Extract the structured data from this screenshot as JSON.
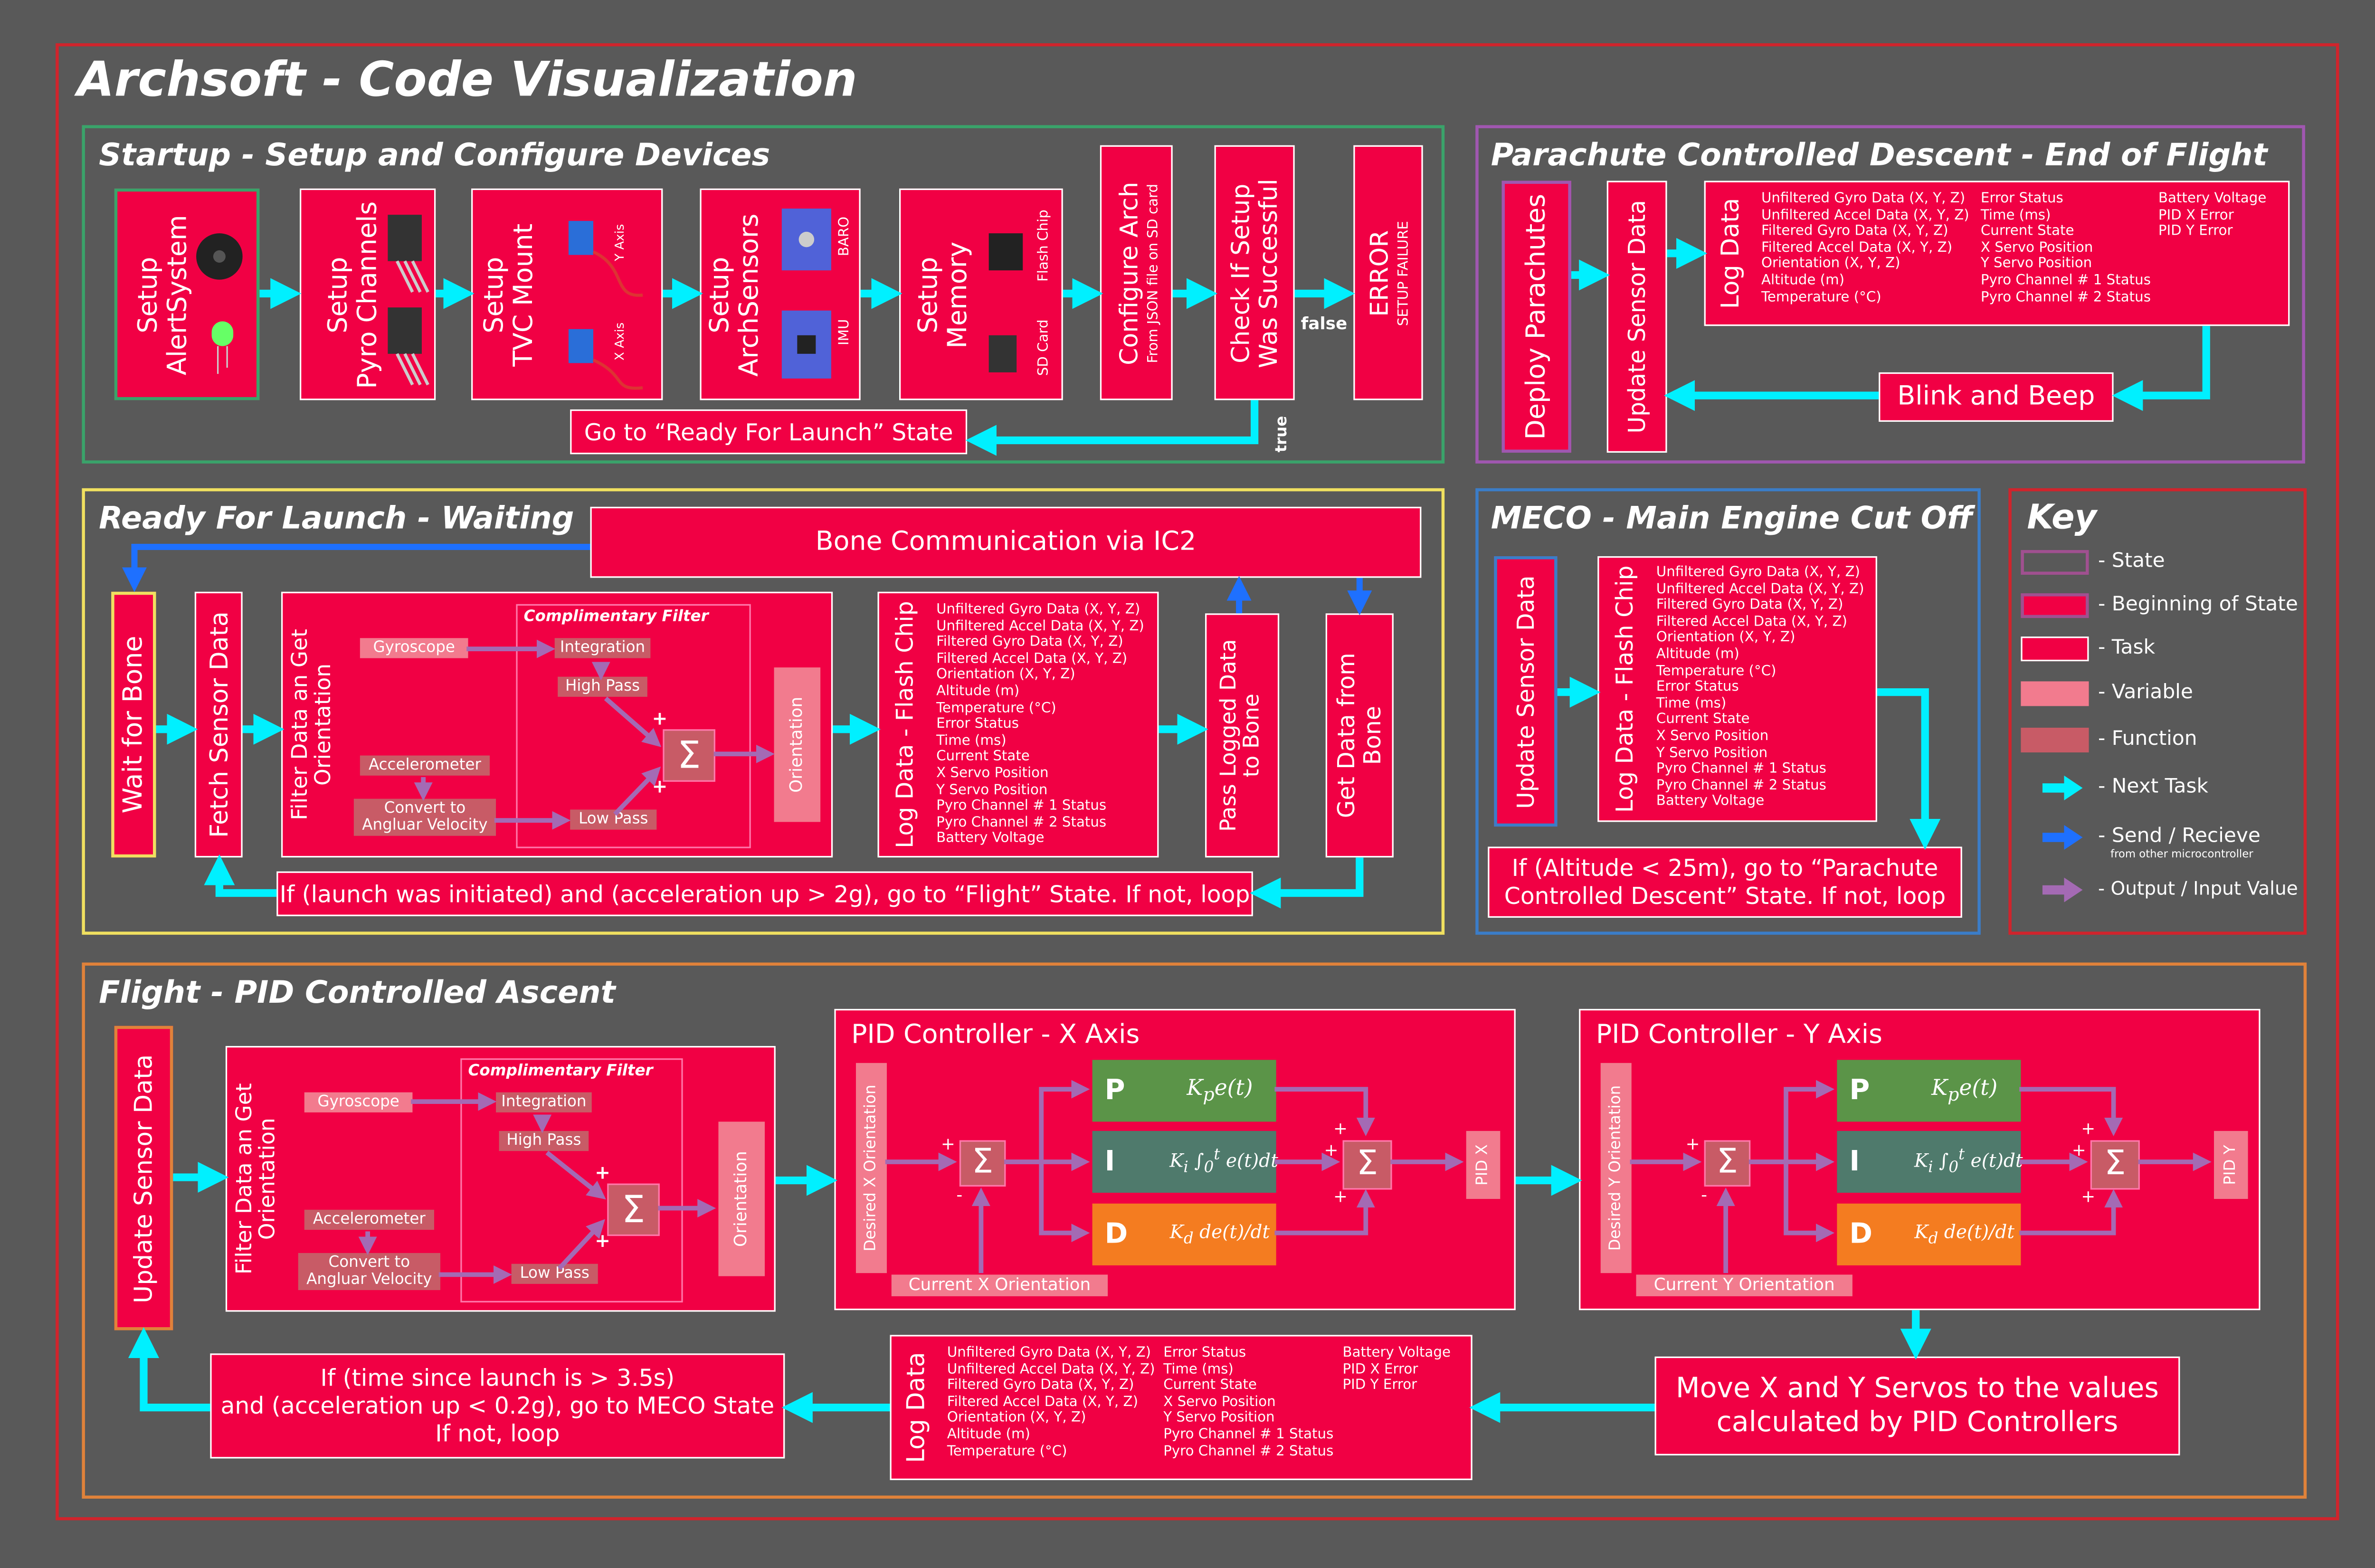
{
  "title": "Archsoft - Code Visualization",
  "startup": {
    "title": "Startup - Setup and Configure Devices",
    "alert": "Setup\nAlertSystem",
    "pyro": "Setup\nPyro Channels",
    "tvc": "Setup\nTVC Mount",
    "tvc_y": "Y Axis",
    "tvc_x": "X Axis",
    "sensors": "Setup\nArchSensors",
    "baro": "BARO",
    "imu": "IMU",
    "memory": "Setup\nMemory",
    "flash_chip": "Flash Chip",
    "sd_card": "SD Card",
    "configure": "Configure Arch",
    "configure_sub": "From JSON file on SD card",
    "check": "Check If Setup\nWas Successful",
    "false_label": "false",
    "true_label": "true",
    "error": "ERROR",
    "error_sub": "SETUP FAILURE",
    "go_ready": "Go to “Ready For Launch” State"
  },
  "parachute": {
    "title": "Parachute Controlled Descent - End of Flight",
    "deploy": "Deploy Parachutes",
    "update": "Update Sensor Data",
    "log": "Log Data",
    "log_col1": [
      "Unfiltered Gyro Data (X, Y, Z)",
      "Unfiltered Accel Data (X, Y, Z)",
      "Filtered Gyro Data (X, Y, Z)",
      "Filtered Accel Data (X, Y, Z)",
      "Orientation (X, Y, Z)",
      "Altitude (m)",
      "Temperature (°C)"
    ],
    "log_col2": [
      "Error Status",
      "Time (ms)",
      "Current State",
      "X Servo Position",
      "Y Servo Position",
      "Pyro Channel # 1 Status",
      "Pyro Channel # 2 Status"
    ],
    "log_col3": [
      "Battery Voltage",
      "PID X Error",
      "PID Y Error"
    ],
    "blink": "Blink and Beep"
  },
  "ready": {
    "title": "Ready For Launch - Waiting",
    "bone_comm": "Bone Communication via IC2",
    "wait": "Wait for Bone",
    "fetch": "Fetch Sensor Data",
    "filter": "Filter Data an Get\nOrientation",
    "cf": "Complimentary Filter",
    "gyro": "Gyroscope",
    "accel": "Accelerometer",
    "convert": "Convert to\nAngluar Velocity",
    "integration": "Integration",
    "high_pass": "High Pass",
    "low_pass": "Low Pass",
    "sigma": "Σ",
    "orientation": "Orientation",
    "log": "Log Data  -  Flash Chip",
    "log_list": [
      "Unfiltered Gyro Data (X, Y, Z)",
      "Unfiltered Accel Data (X, Y, Z)",
      "Filtered Gyro Data (X, Y, Z)",
      "Filtered Accel Data (X, Y, Z)",
      "Orientation (X, Y, Z)",
      "Altitude (m)",
      "Temperature (°C)",
      "Error Status",
      "Time (ms)",
      "Current State",
      "X Servo Position",
      "Y Servo Position",
      "Pyro Channel # 1 Status",
      "Pyro Channel # 2 Status",
      "Battery Voltage"
    ],
    "pass": "Pass Logged Data\nto Bone",
    "get": "Get Data from\nBone",
    "loop": "If (launch was initiated) and (acceleration up > 2g), go to “Flight” State. If not, loop"
  },
  "meco": {
    "title": "MECO - Main Engine Cut Off",
    "update": "Update Sensor Data",
    "log": "Log Data  -  Flash Chip",
    "log_list": [
      "Unfiltered Gyro Data (X, Y, Z)",
      "Unfiltered Accel Data (X, Y, Z)",
      "Filtered Gyro Data (X, Y, Z)",
      "Filtered Accel Data (X, Y, Z)",
      "Orientation (X, Y, Z)",
      "Altitude (m)",
      "Temperature (°C)",
      "Error Status",
      "Time (ms)",
      "Current State",
      "X Servo Position",
      "Y Servo Position",
      "Pyro Channel # 1 Status",
      "Pyro Channel # 2 Status",
      "Battery Voltage"
    ],
    "cond": "If (Altitude < 25m), go to “Parachute\nControlled Descent” State. If not, loop"
  },
  "key": {
    "title": "Key",
    "items": [
      "- State",
      "- Beginning of State",
      "- Task",
      "- Variable",
      "- Function",
      "- Next Task",
      "- Send / Recieve",
      "- Output / Input Value"
    ],
    "send_sub": "from other microcontroller"
  },
  "flight": {
    "title": "Flight - PID Controlled Ascent",
    "update": "Update Sensor Data",
    "filter": "Filter Data an Get\nOrientation",
    "cf": "Complimentary Filter",
    "gyro": "Gyroscope",
    "accel": "Accelerometer",
    "convert": "Convert to\nAngluar Velocity",
    "integration": "Integration",
    "high_pass": "High Pass",
    "low_pass": "Low Pass",
    "orientation": "Orientation",
    "pid_x": {
      "title": "PID Controller - X Axis",
      "desired": "Desired X Orientation",
      "current": "Current X Orientation",
      "out": "PID X"
    },
    "pid_y": {
      "title": "PID Controller - Y Axis",
      "desired": "Desired Y Orientation",
      "current": "Current Y Orientation",
      "out": "PID Y"
    },
    "p": "P",
    "i": "I",
    "d": "D",
    "plus": "+",
    "minus": "-",
    "move": "Move X and Y Servos to the values\ncalculated by PID Controllers",
    "log": "Log Data",
    "log_col1": [
      "Unfiltered Gyro Data (X, Y, Z)",
      "Unfiltered Accel Data (X, Y, Z)",
      "Filtered Gyro Data (X, Y, Z)",
      "Filtered Accel Data (X, Y, Z)",
      "Orientation (X, Y, Z)",
      "Altitude (m)",
      "Temperature (°C)"
    ],
    "log_col2": [
      "Error Status",
      "Time (ms)",
      "Current State",
      "X Servo Position",
      "Y Servo Position",
      "Pyro Channel # 1 Status",
      "Pyro Channel # 2 Status"
    ],
    "log_col3": [
      "Battery Voltage",
      "PID X Error",
      "PID Y Error"
    ],
    "cond": "If (time since launch is > 3.5s)\nand (acceleration up < 0.2g), go to MECO State\nIf not, loop"
  },
  "colors": {
    "background": "#595959",
    "task": "#f10044",
    "variable": "#f27b8e",
    "function": "#c85b66",
    "next_task_arrow": "#00f0ff",
    "send_arrow": "#1e70ff",
    "io_arrow": "#a46ab4",
    "p_row": "#5b9448",
    "i_row": "#4f7a6c",
    "d_row": "#f47c20"
  }
}
